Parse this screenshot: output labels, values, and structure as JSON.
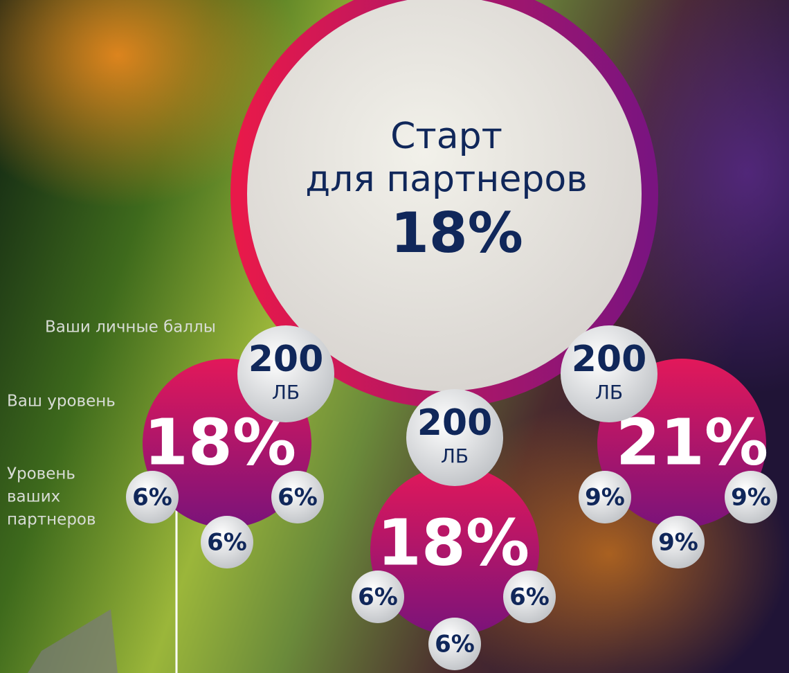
{
  "main": {
    "title_lines": [
      "Старт",
      "для партнеров"
    ],
    "value": "18%"
  },
  "labels": {
    "points": "Ваши личные баллы",
    "level": "Ваш уровень",
    "partners": [
      "Уровень",
      "ваших",
      "партнеров"
    ]
  },
  "branches": [
    {
      "points": "200",
      "unit": "ЛБ",
      "level": "18%",
      "partners": [
        "6%",
        "6%",
        "6%"
      ]
    },
    {
      "points": "200",
      "unit": "ЛБ",
      "level": "18%",
      "partners": [
        "6%",
        "6%",
        "6%"
      ]
    },
    {
      "points": "200",
      "unit": "ЛБ",
      "level": "21%",
      "partners": [
        "9%",
        "9%",
        "9%"
      ]
    }
  ]
}
